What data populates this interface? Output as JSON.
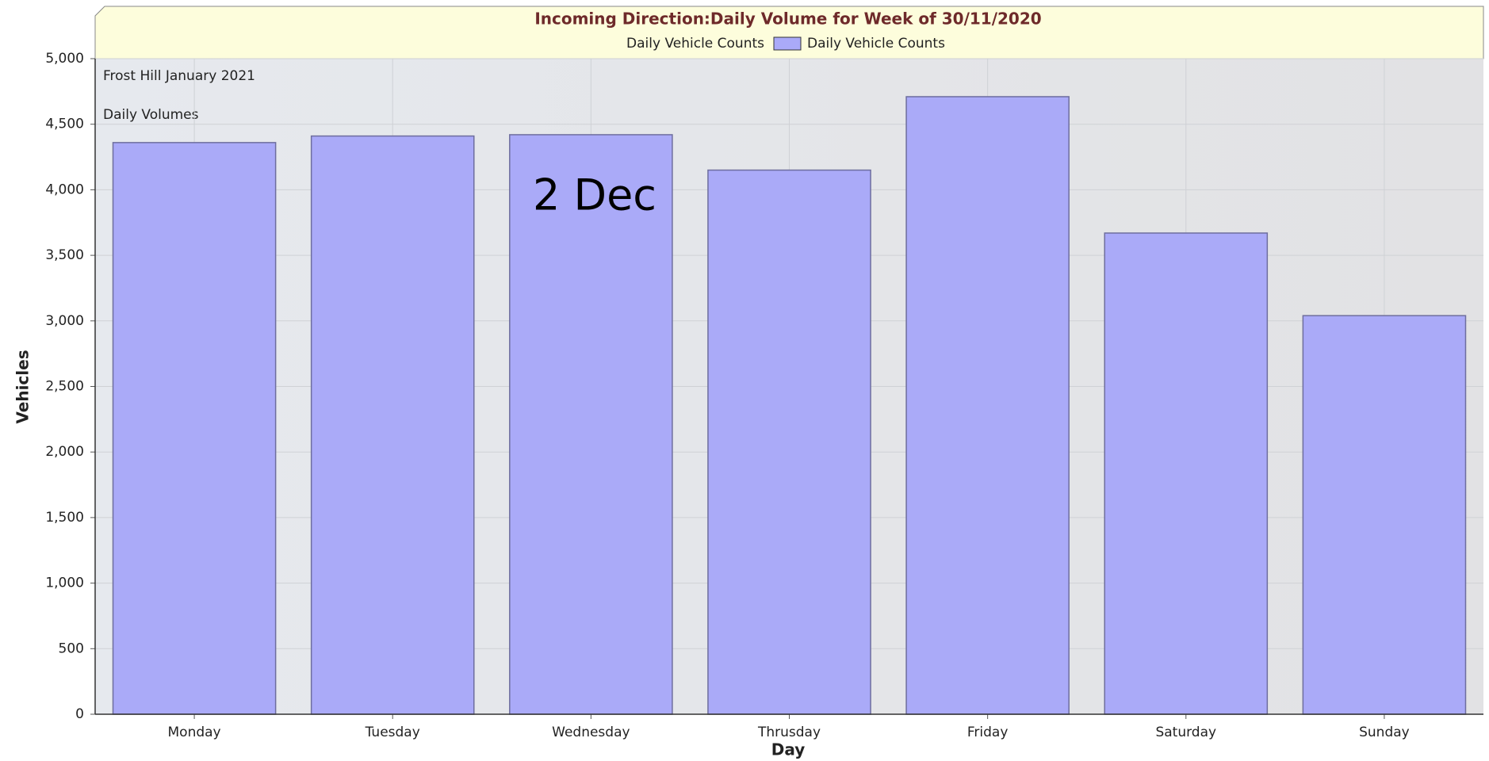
{
  "chart_data": {
    "type": "bar",
    "title": "Incoming Direction:Daily Volume for Week of 30/11/2020",
    "legend_title": "Daily Vehicle Counts",
    "annotations": [
      "Frost Hill January 2021",
      "Daily Volumes",
      "2 Dec"
    ],
    "x_label": "Day",
    "y_label": "Vehicles",
    "categories": [
      "Monday",
      "Tuesday",
      "Wednesday",
      "Thrusday",
      "Friday",
      "Saturday",
      "Sunday"
    ],
    "series": [
      {
        "name": "Daily Vehicle Counts",
        "color": "#aaaaf8",
        "values": [
          4360,
          4410,
          4420,
          4150,
          4710,
          3670,
          3040
        ]
      }
    ],
    "ylim": [
      0,
      5000
    ],
    "yticks": [
      0,
      500,
      {
        "value": 1000,
        "label": "1,000"
      },
      {
        "value": 1500,
        "label": "1,500"
      },
      {
        "value": 2000,
        "label": "2,000"
      },
      {
        "value": 2500,
        "label": "2,500"
      },
      {
        "value": 3000,
        "label": "3,000"
      },
      {
        "value": 3500,
        "label": "3,500"
      },
      {
        "value": 4000,
        "label": "4,000"
      },
      {
        "value": 4500,
        "label": "4,500"
      },
      {
        "value": 5000,
        "label": "5,000"
      }
    ],
    "grid": true
  }
}
